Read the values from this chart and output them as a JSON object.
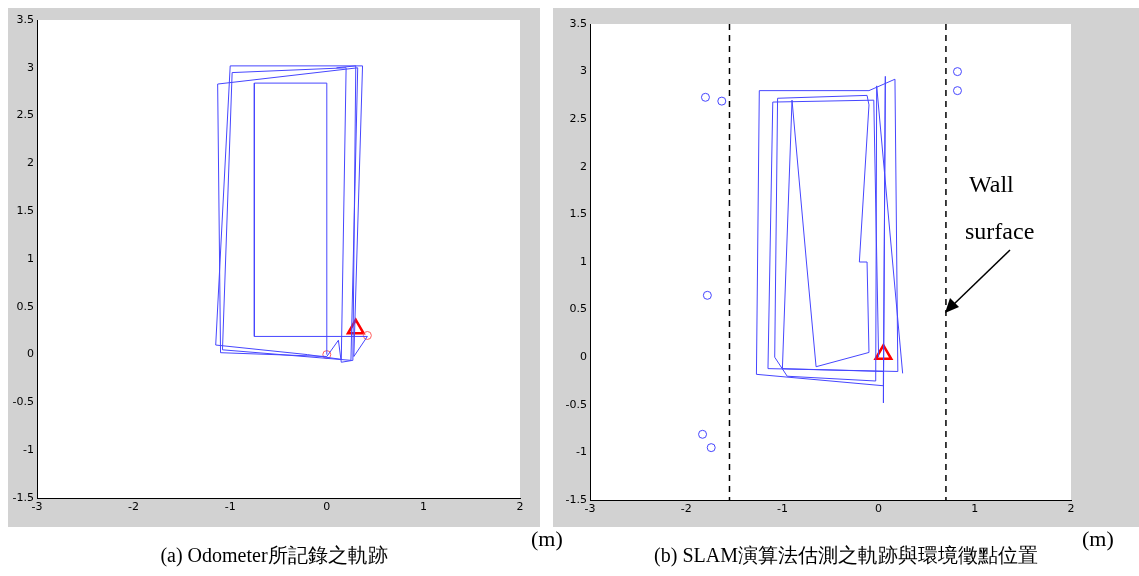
{
  "chart_data": [
    {
      "type": "line",
      "title": "(a) Odometer所記錄之軌跡",
      "xlabel": "(m)",
      "xlim": [
        -3,
        2
      ],
      "ylim": [
        -1.5,
        3.5
      ],
      "xticks": [
        -3,
        -2,
        -1,
        0,
        1,
        2
      ],
      "yticks": [
        -1.5,
        -1,
        -0.5,
        0,
        0.5,
        1,
        1.5,
        2,
        2.5,
        3,
        3.5
      ],
      "grid": false,
      "legend": false,
      "series": [
        {
          "type": "line",
          "marker": "none",
          "color": "#4646ff",
          "x": [
            0,
            0,
            -0.75,
            -0.75,
            0.42,
            0.28,
            0.37,
            -1.0,
            -1.15,
            -0.2,
            0.15,
            0.2,
            -0.98,
            -1.08,
            0.25,
            0.32,
            -1.13,
            -1.1,
            0.0,
            0.12,
            0.15,
            0.27,
            0.3,
            0.1
          ],
          "values": [
            0,
            2.84,
            2.84,
            0.19,
            0.19,
            -0.02,
            3.02,
            3.02,
            0.1,
            0.0,
            -0.05,
            3.0,
            2.95,
            0.05,
            -0.06,
            3.0,
            2.83,
            0.02,
            -0.02,
            0.15,
            -0.08,
            -0.06,
            3.02,
            3.0
          ]
        },
        {
          "type": "scatter",
          "marker": "circle",
          "color": "#ff6060",
          "x": [
            0,
            0.42
          ],
          "values": [
            0,
            0.2
          ]
        },
        {
          "type": "scatter",
          "marker": "triangle",
          "color": "#ff0000",
          "x": [
            0.3
          ],
          "values": [
            0.27
          ]
        }
      ]
    },
    {
      "type": "line",
      "title": "(b) SLAM演算法估測之軌跡與環境徵點位置",
      "xlabel": "(m)",
      "xlim": [
        -3,
        2
      ],
      "ylim": [
        -1.5,
        3.5
      ],
      "xticks": [
        -3,
        -2,
        -1,
        0,
        1,
        2
      ],
      "yticks": [
        -1.5,
        -1,
        -0.5,
        0,
        0.5,
        1,
        1.5,
        2,
        2.5,
        3,
        3.5
      ],
      "grid": false,
      "legend": false,
      "ref_lines": [
        {
          "axis": "x",
          "value": -1.55,
          "color": "#000000",
          "line_style": "dashed"
        },
        {
          "axis": "x",
          "value": 0.7,
          "color": "#000000",
          "line_style": "dashed"
        }
      ],
      "annotations": [
        "Wall surface"
      ],
      "series": [
        {
          "type": "line",
          "marker": "none",
          "color": "#4646ff",
          "x": [
            0,
            -0.05,
            -1.1,
            -1.15,
            0.2,
            0.17,
            -0.1,
            -1.24,
            -1.27,
            0.05,
            0.07,
            0.05,
            0.05,
            -1.0,
            -0.9,
            -0.75,
            -0.65,
            -0.1,
            -0.12,
            -0.2,
            -0.1,
            -0.12,
            -1.05,
            -1.08,
            -0.95,
            -0.03,
            -0.02,
            0.25
          ],
          "values": [
            0,
            2.7,
            2.68,
            -0.12,
            -0.15,
            2.92,
            2.8,
            2.8,
            -0.18,
            -0.3,
            2.95,
            -0.48,
            -0.15,
            -0.12,
            2.7,
            1.0,
            -0.1,
            0.05,
            1.0,
            1.0,
            2.65,
            2.75,
            2.72,
            0.0,
            -0.2,
            -0.25,
            2.85,
            -0.17
          ]
        },
        {
          "type": "scatter",
          "marker": "circle",
          "color": "#4646ff",
          "x": [
            -1.8,
            -1.63,
            -1.78,
            -1.83,
            -1.74,
            0.82,
            0.82
          ],
          "values": [
            2.73,
            2.69,
            0.65,
            -0.81,
            -0.95,
            3.0,
            2.8
          ]
        },
        {
          "type": "scatter",
          "marker": "triangle",
          "color": "#ff0000",
          "x": [
            0.05
          ],
          "values": [
            0.03
          ]
        }
      ]
    }
  ]
}
